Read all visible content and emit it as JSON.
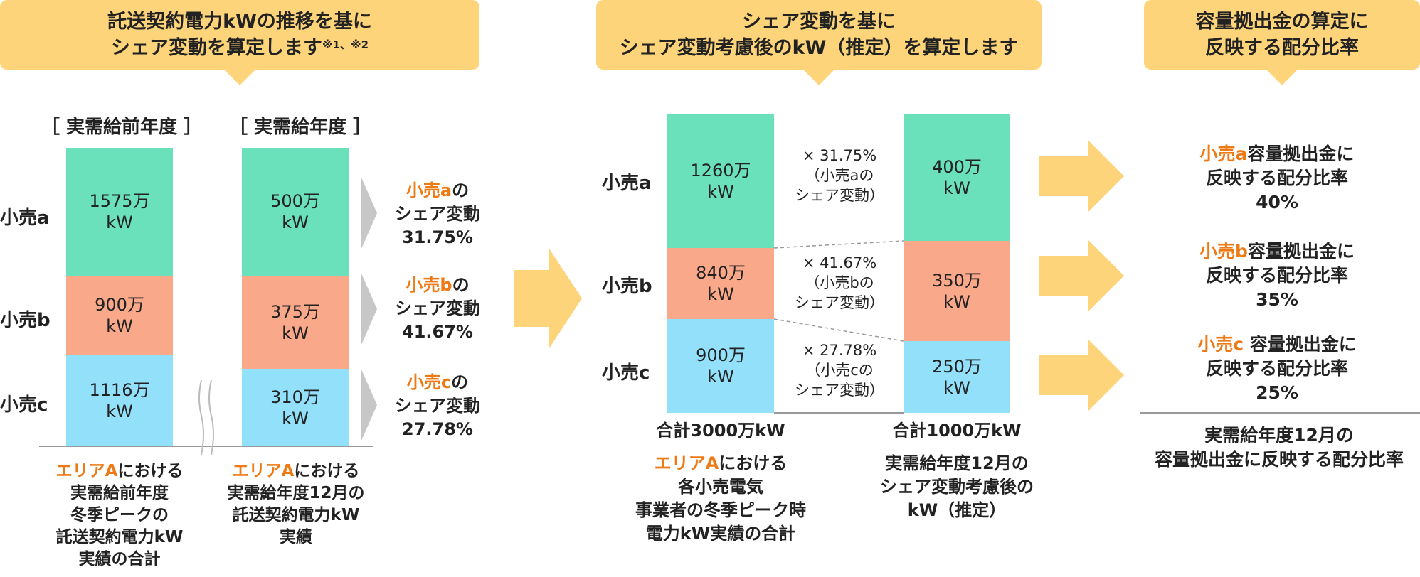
{
  "banners": {
    "left_line1": "託送契約電力kWの推移を基に",
    "left_line2": "シェア変動を算定します",
    "left_note": "※1、※2",
    "mid_line1": "シェア変動を基に",
    "mid_line2": "シェア変動考慮後のkW（推定）を算定します",
    "right_line1": "容量拠出金の算定に",
    "right_line2": "反映する配分比率"
  },
  "left": {
    "header_prev": "［ 実需給前年度 ］",
    "header_curr": "［ 実需給年度 ］",
    "retailers": [
      "小売a",
      "小売b",
      "小売c"
    ],
    "prev_values": [
      "1575万",
      "900万",
      "1116万"
    ],
    "curr_values": [
      "500万",
      "375万",
      "310万"
    ],
    "unit": "kW",
    "shares": [
      {
        "name": "小売a",
        "suffix": "の",
        "label": "シェア変動",
        "value": "31.75%"
      },
      {
        "name": "小売b",
        "suffix": "の",
        "label": "シェア変動",
        "value": "41.67%"
      },
      {
        "name": "小売c",
        "suffix": "の",
        "label": "シェア変動",
        "value": "27.78%"
      }
    ],
    "caption_prev": {
      "area": "エリアA",
      "rest1": "における",
      "l2": "実需給前年度",
      "l3": "冬季ピークの",
      "l4": "託送契約電力kW",
      "l5": "実績の合計"
    },
    "caption_curr": {
      "area": "エリアA",
      "rest1": "における",
      "l2": "実需給年度12月の",
      "l3": "託送契約電力kW",
      "l4": "実績"
    }
  },
  "middle": {
    "retailers": [
      "小売a",
      "小売b",
      "小売c"
    ],
    "left_values": [
      "1260万",
      "840万",
      "900万"
    ],
    "right_values": [
      "400万",
      "350万",
      "250万"
    ],
    "unit": "kW",
    "multipliers": [
      {
        "factor": "× 31.75%",
        "l2": "（小売aの",
        "l3": "シェア変動）"
      },
      {
        "factor": "× 41.67%",
        "l2": "（小売bの",
        "l3": "シェア変動）"
      },
      {
        "factor": "× 27.78%",
        "l2": "（小売cの",
        "l3": "シェア変動）"
      }
    ],
    "total_left": "合計3000万kW",
    "total_right": "合計1000万kW",
    "caption_left": {
      "area": "エリアA",
      "rest1": "における",
      "l2": "各小売電気",
      "l3": "事業者の冬季ピーク時",
      "l4": "電力kW実績の合計"
    },
    "caption_right": {
      "l1": "実需給年度12月の",
      "l2": "シェア変動考慮後の",
      "l3": "kW（推定）"
    }
  },
  "right": {
    "results": [
      {
        "name": "小売a",
        "l1rest": "容量拠出金に",
        "l2": "反映する配分比率",
        "pct": "40%"
      },
      {
        "name": "小売b",
        "l1rest": "容量拠出金に",
        "l2": "反映する配分比率",
        "pct": "35%"
      },
      {
        "name": "小売c",
        "l1rest": " 容量拠出金に",
        "l2": "反映する配分比率",
        "pct": "25%"
      }
    ],
    "footer_l1": "実需給年度12月の",
    "footer_l2": "容量拠出金に反映する配分比率"
  },
  "colors": {
    "banner": "#fdd479",
    "green": "#6ae0bb",
    "salmon": "#faa88a",
    "blue": "#93e0fa",
    "accent": "#ee7a16",
    "arrow": "#fdd479"
  }
}
